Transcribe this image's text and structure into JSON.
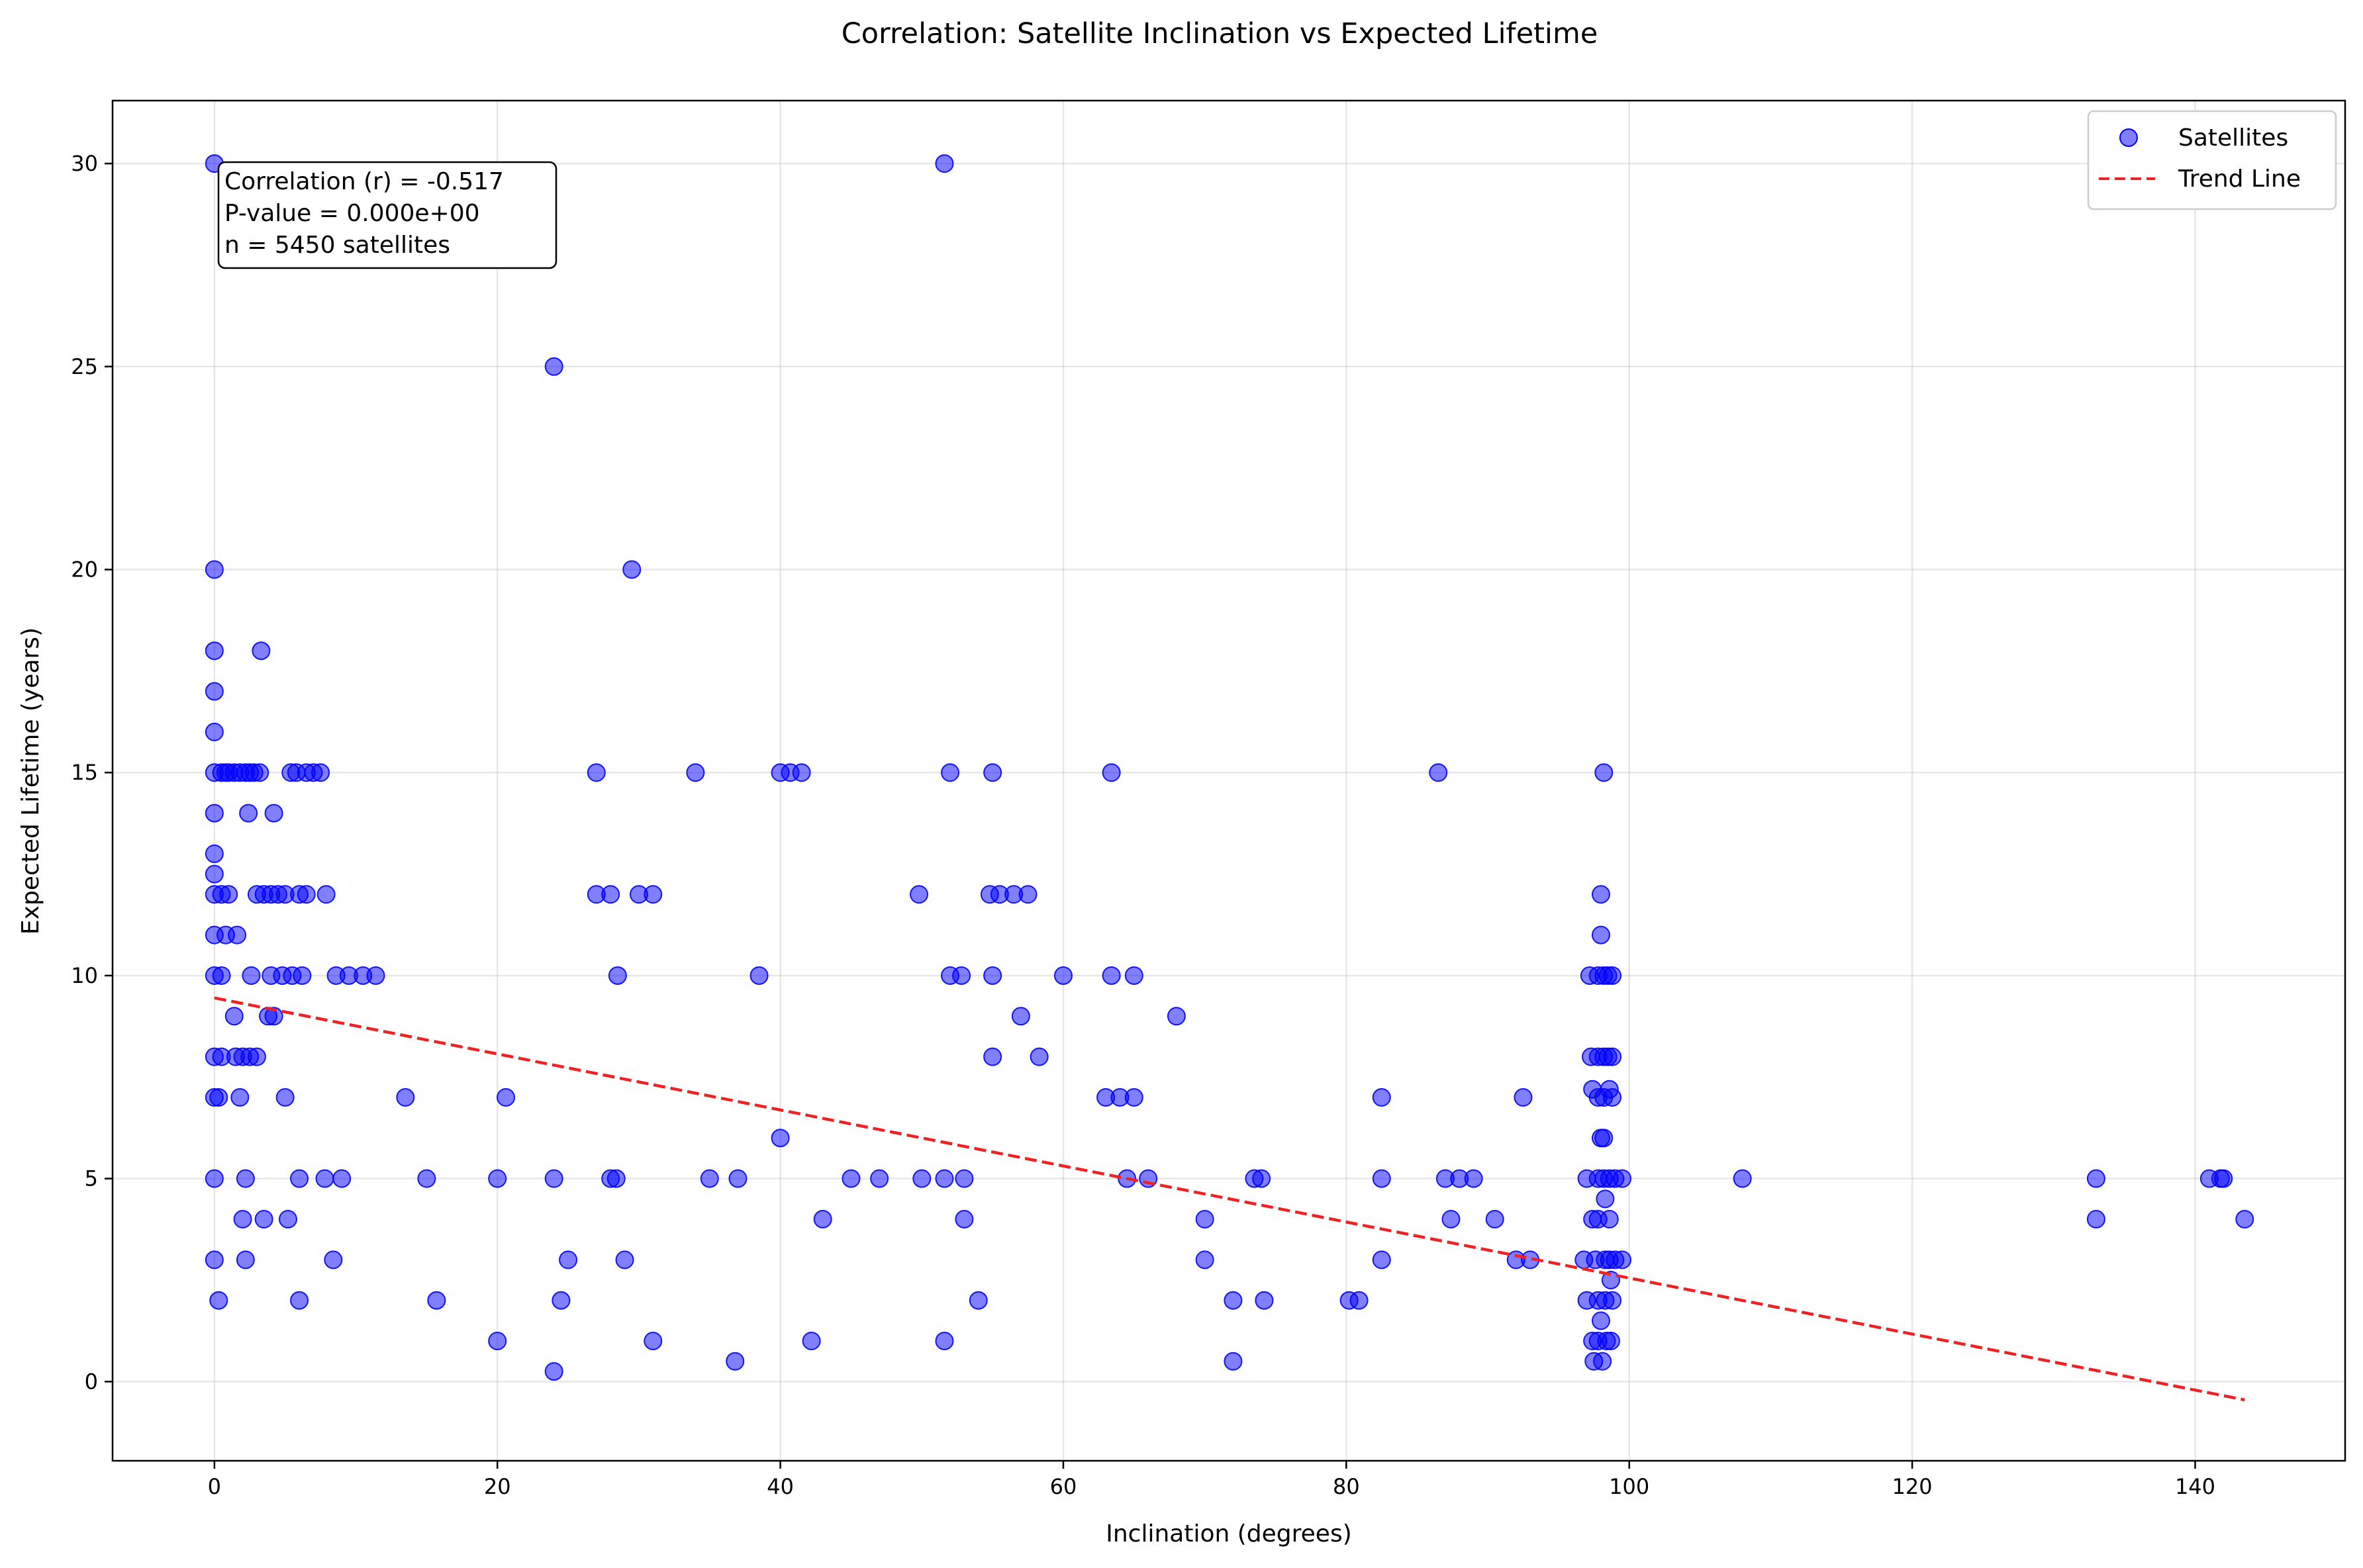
{
  "chart_data": {
    "type": "scatter",
    "title": "Correlation: Satellite Inclination vs Expected Lifetime",
    "xlabel": "Inclination (degrees)",
    "ylabel": "Expected Lifetime (years)",
    "xlim": [
      -7.2,
      150.6
    ],
    "ylim": [
      -1.95,
      31.55
    ],
    "xticks": [
      0,
      20,
      40,
      60,
      80,
      100,
      120,
      140
    ],
    "yticks": [
      0,
      5,
      10,
      15,
      20,
      25,
      30
    ],
    "grid": true,
    "legend_position": "top-right",
    "stats": {
      "correlation": "Correlation (r) = -0.517",
      "p_value": "P-value = 0.000e+00",
      "n": "n = 5450 satellites"
    },
    "series": [
      {
        "name": "Satellites",
        "kind": "scatter",
        "color": "#0000ff",
        "points": [
          [
            0,
            30
          ],
          [
            0,
            20
          ],
          [
            0,
            18
          ],
          [
            0,
            17
          ],
          [
            0,
            16
          ],
          [
            0,
            15
          ],
          [
            0,
            14
          ],
          [
            0,
            13
          ],
          [
            0,
            12.5
          ],
          [
            0,
            12
          ],
          [
            0,
            11
          ],
          [
            0,
            10
          ],
          [
            0,
            8
          ],
          [
            0,
            7
          ],
          [
            0,
            5
          ],
          [
            0,
            3
          ],
          [
            0.3,
            2
          ],
          [
            0.3,
            7
          ],
          [
            0.5,
            15
          ],
          [
            0.5,
            12
          ],
          [
            0.5,
            10
          ],
          [
            0.5,
            8
          ],
          [
            0.8,
            15
          ],
          [
            0.8,
            11
          ],
          [
            1,
            15
          ],
          [
            1,
            12
          ],
          [
            1.4,
            15
          ],
          [
            1.4,
            9
          ],
          [
            1.5,
            8
          ],
          [
            1.6,
            11
          ],
          [
            1.8,
            15
          ],
          [
            1.8,
            7
          ],
          [
            2,
            8
          ],
          [
            2,
            4
          ],
          [
            2.2,
            15
          ],
          [
            2.2,
            5
          ],
          [
            2.2,
            3
          ],
          [
            2.4,
            14
          ],
          [
            2.5,
            15
          ],
          [
            2.5,
            8
          ],
          [
            2.6,
            10
          ],
          [
            2.8,
            15
          ],
          [
            3,
            12
          ],
          [
            3,
            8
          ],
          [
            3.2,
            15
          ],
          [
            3.3,
            18
          ],
          [
            3.5,
            12
          ],
          [
            3.5,
            4
          ],
          [
            3.8,
            9
          ],
          [
            4,
            12
          ],
          [
            4,
            10
          ],
          [
            4.2,
            14
          ],
          [
            4.2,
            9
          ],
          [
            4.5,
            12
          ],
          [
            4.8,
            10
          ],
          [
            5,
            12
          ],
          [
            5,
            7
          ],
          [
            5.2,
            4
          ],
          [
            5.4,
            15
          ],
          [
            5.5,
            10
          ],
          [
            5.8,
            15
          ],
          [
            6,
            12
          ],
          [
            6,
            5
          ],
          [
            6,
            2
          ],
          [
            6.2,
            10
          ],
          [
            6.5,
            15
          ],
          [
            6.5,
            12
          ],
          [
            7,
            15
          ],
          [
            7.5,
            15
          ],
          [
            7.8,
            5
          ],
          [
            7.9,
            12
          ],
          [
            8.4,
            3
          ],
          [
            8.6,
            10
          ],
          [
            9,
            5
          ],
          [
            9.5,
            10
          ],
          [
            10.5,
            10
          ],
          [
            11.4,
            10
          ],
          [
            13.5,
            7
          ],
          [
            15,
            5
          ],
          [
            15.7,
            2
          ],
          [
            20,
            5
          ],
          [
            20,
            1
          ],
          [
            20.6,
            7
          ],
          [
            24,
            5
          ],
          [
            24,
            0.25
          ],
          [
            24,
            25
          ],
          [
            24.5,
            2
          ],
          [
            25,
            3
          ],
          [
            27,
            15
          ],
          [
            27,
            12
          ],
          [
            28,
            5
          ],
          [
            28,
            12
          ],
          [
            28.4,
            5
          ],
          [
            28.5,
            10
          ],
          [
            29,
            3
          ],
          [
            29.5,
            20
          ],
          [
            30,
            12
          ],
          [
            31,
            12
          ],
          [
            31,
            1
          ],
          [
            34,
            15
          ],
          [
            35,
            5
          ],
          [
            36.8,
            0.5
          ],
          [
            37,
            5
          ],
          [
            38.5,
            10
          ],
          [
            40,
            6
          ],
          [
            40,
            15
          ],
          [
            40.7,
            15
          ],
          [
            41.5,
            15
          ],
          [
            42.2,
            1
          ],
          [
            43,
            4
          ],
          [
            45,
            5
          ],
          [
            47,
            5
          ],
          [
            49.8,
            12
          ],
          [
            50,
            5
          ],
          [
            51.6,
            30
          ],
          [
            51.6,
            5
          ],
          [
            51.6,
            1
          ],
          [
            52,
            15
          ],
          [
            52,
            10
          ],
          [
            52.8,
            10
          ],
          [
            53,
            5
          ],
          [
            53,
            4
          ],
          [
            54,
            2
          ],
          [
            54.8,
            12
          ],
          [
            55,
            15
          ],
          [
            55,
            10
          ],
          [
            55,
            8
          ],
          [
            55.5,
            12
          ],
          [
            56.5,
            12
          ],
          [
            57,
            9
          ],
          [
            57.5,
            12
          ],
          [
            58.3,
            8
          ],
          [
            60,
            10
          ],
          [
            63,
            7
          ],
          [
            63.4,
            15
          ],
          [
            63.4,
            10
          ],
          [
            64,
            7
          ],
          [
            64.5,
            5
          ],
          [
            65,
            10
          ],
          [
            65,
            7
          ],
          [
            66,
            5
          ],
          [
            68,
            9
          ],
          [
            70,
            4
          ],
          [
            70,
            3
          ],
          [
            72,
            2
          ],
          [
            72,
            0.5
          ],
          [
            73.5,
            5
          ],
          [
            74,
            5
          ],
          [
            74.2,
            2
          ],
          [
            80.2,
            2
          ],
          [
            80.9,
            2
          ],
          [
            82.5,
            7
          ],
          [
            82.5,
            5
          ],
          [
            82.5,
            3
          ],
          [
            86.5,
            15
          ],
          [
            87,
            5
          ],
          [
            87.4,
            4
          ],
          [
            88,
            5
          ],
          [
            89,
            5
          ],
          [
            90.5,
            4
          ],
          [
            92,
            3
          ],
          [
            92.5,
            7
          ],
          [
            93,
            3
          ],
          [
            96.8,
            3
          ],
          [
            97,
            5
          ],
          [
            97,
            2
          ],
          [
            97.2,
            10
          ],
          [
            97.3,
            8
          ],
          [
            97.4,
            7.2
          ],
          [
            97.4,
            4
          ],
          [
            97.4,
            1
          ],
          [
            97.5,
            0.5
          ],
          [
            97.6,
            3
          ],
          [
            97.8,
            10
          ],
          [
            97.8,
            8
          ],
          [
            97.8,
            7
          ],
          [
            97.8,
            5
          ],
          [
            97.8,
            4
          ],
          [
            97.8,
            2
          ],
          [
            97.8,
            1
          ],
          [
            98,
            12
          ],
          [
            98,
            11
          ],
          [
            98,
            6
          ],
          [
            98,
            1.5
          ],
          [
            98.1,
            0.5
          ],
          [
            98.2,
            15
          ],
          [
            98.2,
            10
          ],
          [
            98.2,
            8
          ],
          [
            98.2,
            7
          ],
          [
            98.2,
            6
          ],
          [
            98.2,
            5
          ],
          [
            98.3,
            4.5
          ],
          [
            98.3,
            3
          ],
          [
            98.3,
            2
          ],
          [
            98.4,
            1
          ],
          [
            98.5,
            10
          ],
          [
            98.5,
            8
          ],
          [
            98.6,
            7.2
          ],
          [
            98.6,
            5
          ],
          [
            98.6,
            4
          ],
          [
            98.6,
            3
          ],
          [
            98.7,
            2.5
          ],
          [
            98.7,
            1
          ],
          [
            98.8,
            10
          ],
          [
            98.8,
            8
          ],
          [
            98.8,
            7
          ],
          [
            98.8,
            2
          ],
          [
            99,
            5
          ],
          [
            99,
            3
          ],
          [
            99.5,
            5
          ],
          [
            99.5,
            3
          ],
          [
            108,
            5
          ],
          [
            133,
            5
          ],
          [
            133,
            4
          ],
          [
            141,
            5
          ],
          [
            141.8,
            5
          ],
          [
            142,
            5
          ],
          [
            143.5,
            4
          ]
        ]
      },
      {
        "name": "Trend Line",
        "kind": "line",
        "color": "#ee2222",
        "dash": "dashed",
        "points": [
          [
            0,
            9.45
          ],
          [
            143.5,
            -0.45
          ]
        ]
      }
    ]
  }
}
